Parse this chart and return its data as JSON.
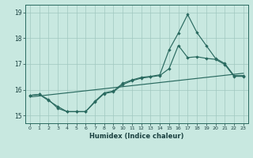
{
  "xlabel": "Humidex (Indice chaleur)",
  "xlim": [
    -0.5,
    23.5
  ],
  "ylim": [
    14.7,
    19.3
  ],
  "xticks": [
    0,
    1,
    2,
    3,
    4,
    5,
    6,
    7,
    8,
    9,
    10,
    11,
    12,
    13,
    14,
    15,
    16,
    17,
    18,
    19,
    20,
    21,
    22,
    23
  ],
  "yticks": [
    15,
    16,
    17,
    18,
    19
  ],
  "bg_color": "#c8e8e0",
  "grid_color": "#a0c8c0",
  "line_color": "#2a6a60",
  "line1_x": [
    0,
    1,
    2,
    3,
    4,
    5,
    6,
    7,
    8,
    9,
    10,
    11,
    12,
    13,
    14,
    15,
    16,
    17,
    18,
    19,
    20,
    21,
    22,
    23
  ],
  "line1_y": [
    15.78,
    15.82,
    15.58,
    15.35,
    15.15,
    15.15,
    15.15,
    15.55,
    15.88,
    15.95,
    16.25,
    16.38,
    16.48,
    16.52,
    16.58,
    17.55,
    18.2,
    18.92,
    18.22,
    17.72,
    17.22,
    17.02,
    16.55,
    16.55
  ],
  "line2_x": [
    0,
    1,
    2,
    3,
    4,
    5,
    6,
    7,
    8,
    9,
    10,
    11,
    12,
    13,
    14,
    15,
    16,
    17,
    18,
    19,
    20,
    21,
    22,
    23
  ],
  "line2_y": [
    15.78,
    15.82,
    15.62,
    15.28,
    15.15,
    15.15,
    15.15,
    15.52,
    15.85,
    15.92,
    16.2,
    16.35,
    16.45,
    16.5,
    16.55,
    16.82,
    17.72,
    17.25,
    17.28,
    17.22,
    17.18,
    16.98,
    16.52,
    16.52
  ],
  "line3_x": [
    0,
    1,
    2,
    3,
    4,
    5,
    6,
    7,
    8,
    9,
    10,
    11,
    12,
    13,
    14,
    15,
    16,
    17,
    18,
    19,
    20,
    21,
    22,
    23
  ],
  "line3_y": [
    15.72,
    15.76,
    15.8,
    15.84,
    15.88,
    15.92,
    15.96,
    16.0,
    16.04,
    16.08,
    16.12,
    16.16,
    16.2,
    16.24,
    16.28,
    16.32,
    16.36,
    16.4,
    16.44,
    16.48,
    16.52,
    16.56,
    16.6,
    16.64
  ]
}
